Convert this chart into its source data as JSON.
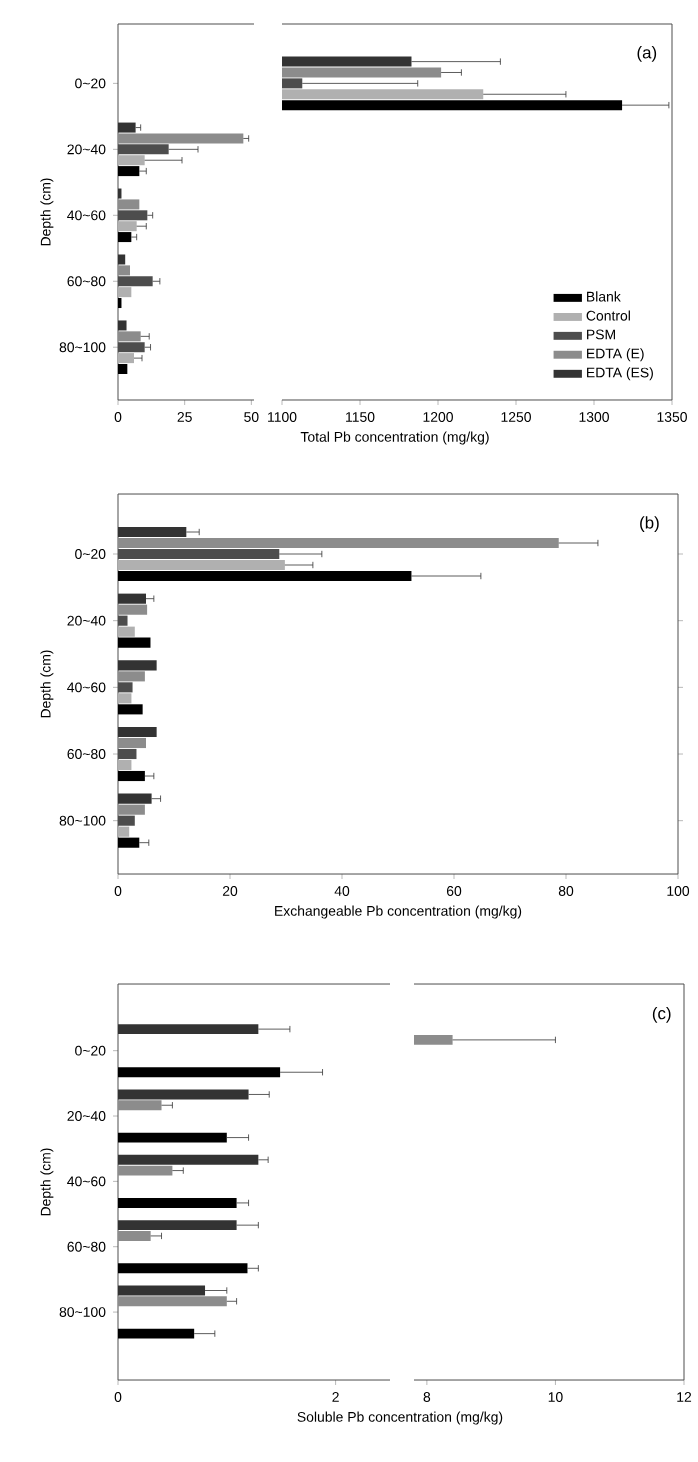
{
  "chart_data": [
    {
      "type": "bar",
      "orientation": "horizontal",
      "ylabel": "Depth (cm)",
      "categories": [
        "0~20",
        "20~40",
        "40~60",
        "60~80",
        "80~100"
      ],
      "xlim": [
        0,
        51
      ],
      "xticks": [
        0,
        25,
        50
      ],
      "series": [
        {
          "color": "#000000",
          "values": [
            null,
            8,
            5,
            1.3,
            3.5
          ],
          "errors": [
            null,
            [
              8,
              10.6
            ],
            [
              5,
              7
            ],
            null,
            null
          ]
        },
        {
          "color": "#b0b0b0",
          "values": [
            null,
            10,
            7,
            5,
            6
          ],
          "errors": [
            null,
            [
              10,
              24
            ],
            [
              7,
              10.6
            ],
            null,
            [
              6,
              9
            ]
          ]
        },
        {
          "color": "#4d4d4d",
          "values": [
            null,
            19,
            11,
            13,
            10
          ],
          "errors": [
            null,
            [
              19,
              30
            ],
            [
              11,
              13
            ],
            [
              13,
              15.7
            ],
            [
              10,
              12.2
            ]
          ]
        },
        {
          "color": "#8c8c8c",
          "values": [
            null,
            47,
            8,
            4.5,
            8.5
          ],
          "errors": [
            null,
            [
              47,
              49
            ],
            null,
            null,
            [
              8.5,
              11.7
            ]
          ]
        },
        {
          "color": "#333333",
          "values": [
            null,
            6.6,
            1.3,
            2.7,
            3.2
          ],
          "errors": [
            null,
            [
              6.6,
              8.5
            ],
            null,
            null,
            null
          ]
        }
      ]
    },
    {
      "type": "bar",
      "orientation": "horizontal",
      "xlabel": "Total Pb concentration (mg/kg)",
      "annotations": [
        "(a)"
      ],
      "categories": [
        null,
        null,
        null,
        null,
        null
      ],
      "xlim": [
        1100,
        1350
      ],
      "xticks": [
        1100,
        1150,
        1200,
        1250,
        1300,
        1350
      ],
      "tick_labels": "x",
      "legend": "bottom right",
      "series": [
        {
          "name": "Blank",
          "color": "#000000",
          "values": [
            1318,
            null,
            null,
            null,
            null
          ],
          "errors": [
            [
              1318,
              1348
            ],
            null,
            null,
            null,
            null
          ]
        },
        {
          "name": "Control",
          "color": "#b0b0b0",
          "values": [
            1229,
            null,
            null,
            null,
            null
          ],
          "errors": [
            [
              1229,
              1282
            ],
            null,
            null,
            null,
            null
          ]
        },
        {
          "name": "PSM",
          "color": "#4d4d4d",
          "values": [
            1113,
            null,
            null,
            null,
            null
          ],
          "errors": [
            [
              1113,
              1187
            ],
            null,
            null,
            null,
            null
          ]
        },
        {
          "name": "EDTA (E)",
          "color": "#8c8c8c",
          "values": [
            1202,
            null,
            null,
            null,
            null
          ],
          "errors": [
            [
              1202,
              1215
            ],
            null,
            null,
            null,
            null
          ]
        },
        {
          "name": "EDTA (ES)",
          "color": "#333333",
          "values": [
            1183,
            null,
            null,
            null,
            null
          ],
          "errors": [
            [
              1183,
              1240
            ],
            null,
            null,
            null,
            null
          ]
        }
      ]
    },
    {
      "type": "bar",
      "orientation": "horizontal",
      "xlabel": "Exchangeable Pb concentration (mg/kg)",
      "ylabel": "Depth (cm)",
      "annotations": [
        "(b)"
      ],
      "categories": [
        "0~20",
        "20~40",
        "40~60",
        "60~80",
        "80~100"
      ],
      "xlim": [
        0,
        100
      ],
      "xticks": [
        0,
        20,
        40,
        60,
        80,
        100
      ],
      "series": [
        {
          "color": "#000000",
          "values": [
            52.4,
            5.8,
            4.4,
            4.8,
            3.8
          ],
          "errors": [
            [
              52.4,
              64.8
            ],
            null,
            null,
            [
              4.8,
              6.4
            ],
            [
              3.8,
              5.5
            ]
          ]
        },
        {
          "color": "#b0b0b0",
          "values": [
            29.8,
            3,
            2.4,
            2.4,
            2
          ],
          "errors": [
            [
              29.8,
              34.8
            ],
            null,
            null,
            null,
            null
          ]
        },
        {
          "color": "#4d4d4d",
          "values": [
            28.8,
            1.7,
            2.6,
            3.3,
            3
          ],
          "errors": [
            [
              28.8,
              36.4
            ],
            null,
            null,
            null,
            null
          ]
        },
        {
          "color": "#8c8c8c",
          "values": [
            78.7,
            5.2,
            4.8,
            5,
            4.8
          ],
          "errors": [
            [
              78.7,
              85.7
            ],
            null,
            null,
            null,
            null
          ]
        },
        {
          "color": "#333333",
          "values": [
            12.2,
            5,
            6.9,
            6.9,
            6
          ],
          "errors": [
            [
              12.2,
              14.5
            ],
            [
              5,
              6.4
            ],
            null,
            null,
            [
              6,
              7.6
            ]
          ]
        }
      ]
    },
    {
      "type": "bar",
      "orientation": "horizontal",
      "xlabel": "Soluble Pb concentration (mg/kg)",
      "ylabel": "Depth (cm)",
      "categories": [
        "0~20",
        "20~40",
        "40~60",
        "60~80",
        "80~100"
      ],
      "xlim": [
        0,
        2.5
      ],
      "xticks": [
        0,
        2
      ],
      "series": [
        {
          "color": "#000000",
          "values": [
            1.49,
            1.0,
            1.09,
            1.19,
            0.7
          ],
          "errors": [
            [
              1.49,
              1.88
            ],
            [
              1.0,
              1.2
            ],
            [
              1.09,
              1.2
            ],
            [
              1.19,
              1.29
            ],
            [
              0.7,
              0.89
            ]
          ]
        },
        {
          "color": "#b0b0b0",
          "values": [
            null,
            null,
            null,
            null,
            null
          ]
        },
        {
          "color": "#4d4d4d",
          "values": [
            null,
            null,
            null,
            null,
            null
          ]
        },
        {
          "color": "#8c8c8c",
          "values": [
            null,
            0.4,
            0.5,
            0.3,
            1.0
          ],
          "errors": [
            null,
            [
              0.4,
              0.5
            ],
            [
              0.5,
              0.6
            ],
            [
              0.3,
              0.4
            ],
            [
              1.0,
              1.09
            ]
          ]
        },
        {
          "color": "#333333",
          "values": [
            1.29,
            1.2,
            1.29,
            1.09,
            0.8
          ],
          "errors": [
            [
              1.29,
              1.58
            ],
            [
              1.2,
              1.39
            ],
            [
              1.29,
              1.38
            ],
            [
              1.09,
              1.29
            ],
            [
              0.8,
              1.0
            ]
          ]
        }
      ]
    },
    {
      "type": "bar",
      "orientation": "horizontal",
      "annotations": [
        "(c)"
      ],
      "categories": [
        null,
        null,
        null,
        null,
        null
      ],
      "xlim": [
        7.8,
        12
      ],
      "xticks": [
        8,
        10,
        12
      ],
      "tick_labels": "x",
      "series": [
        {
          "color": "#000000",
          "values": [
            null,
            null,
            null,
            null,
            null
          ]
        },
        {
          "color": "#b0b0b0",
          "values": [
            null,
            null,
            null,
            null,
            null
          ]
        },
        {
          "color": "#4d4d4d",
          "values": [
            null,
            null,
            null,
            null,
            null
          ]
        },
        {
          "color": "#8c8c8c",
          "values": [
            8.4,
            null,
            null,
            null,
            null
          ],
          "errors": [
            [
              8.4,
              10
            ],
            null,
            null,
            null,
            null
          ]
        },
        {
          "color": "#333333",
          "values": [
            null,
            null,
            null,
            null,
            null
          ]
        }
      ]
    }
  ]
}
